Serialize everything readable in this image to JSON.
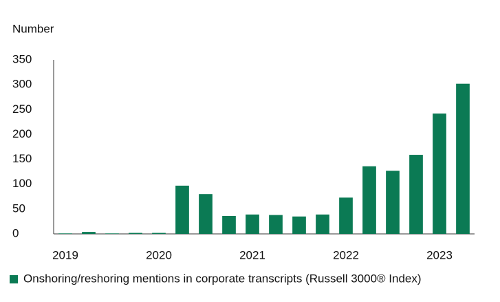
{
  "chart_data": {
    "type": "bar",
    "y_label": "Number",
    "categories": [
      "2019",
      null,
      null,
      null,
      "2020",
      null,
      null,
      null,
      "2021",
      null,
      null,
      null,
      "2022",
      null,
      null,
      null,
      "2023",
      null
    ],
    "series": [
      {
        "name": "Onshoring/reshoring mentions in corporate transcripts (Russell 3000® Index)",
        "color": "#0b7a54",
        "values": [
          1,
          4,
          1,
          2,
          2,
          97,
          80,
          36,
          39,
          38,
          35,
          39,
          73,
          136,
          127,
          159,
          242,
          302
        ]
      }
    ],
    "ylim": [
      0,
      350
    ],
    "yticks": [
      0,
      50,
      100,
      150,
      200,
      250,
      300,
      350
    ],
    "grid": false
  }
}
